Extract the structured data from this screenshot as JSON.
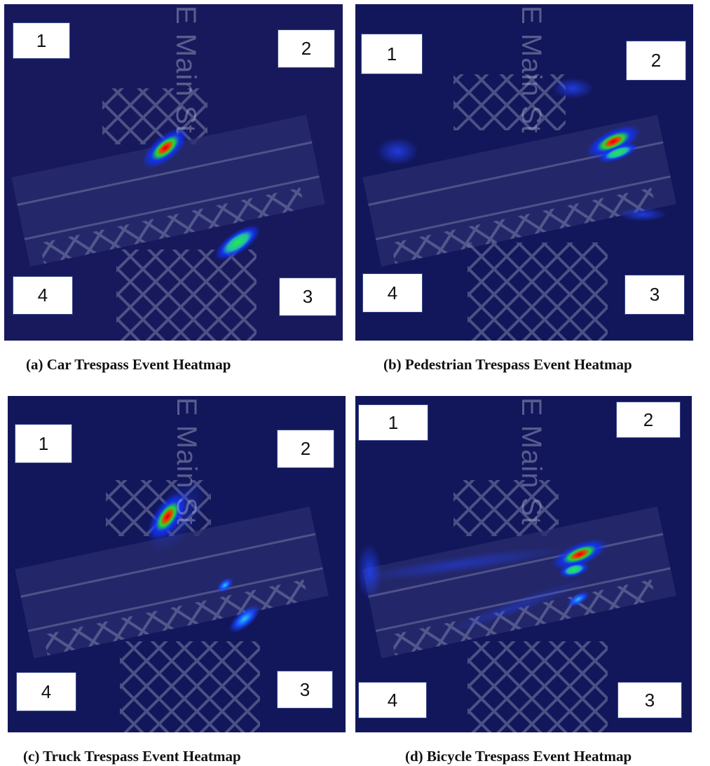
{
  "street_label": "E Main St",
  "colors": {
    "map_bg": "#12165a",
    "blob_low": "#1030ff",
    "blob_mid": "#11dd44",
    "blob_high": "#ff1a00"
  },
  "panels": [
    {
      "id": "a",
      "caption": "(a) Car Trespass Event Heatmap",
      "zones": [
        "1",
        "2",
        "3",
        "4"
      ]
    },
    {
      "id": "b",
      "caption": "(b) Pedestrian Trespass Event Heatmap",
      "zones": [
        "1",
        "2",
        "3",
        "4"
      ]
    },
    {
      "id": "c",
      "caption": "(c) Truck Trespass Event Heatmap",
      "zones": [
        "1",
        "2",
        "3",
        "4"
      ]
    },
    {
      "id": "d",
      "caption": "(d) Bicycle Trespass Event Heatmap",
      "zones": [
        "1",
        "2",
        "3",
        "4"
      ]
    }
  ]
}
